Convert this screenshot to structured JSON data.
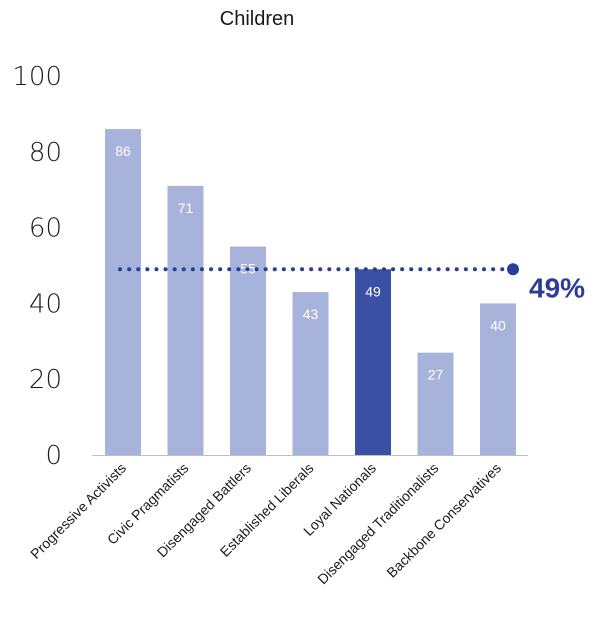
{
  "chart_data": {
    "type": "bar",
    "title": "Children",
    "categories": [
      "Progressive Activists",
      "Civic Pragmatists",
      "Disengaged Battlers",
      "Established Liberals",
      "Loyal Nationals",
      "Disengaged Traditionalists",
      "Backbone Conservatives"
    ],
    "values": [
      86,
      71,
      55,
      43,
      49,
      27,
      40
    ],
    "highlight_category": "Loyal Nationals",
    "reference_line": {
      "value": 49,
      "label": "49%"
    },
    "ylim": [
      0,
      100
    ],
    "yticks": [
      0,
      20,
      40,
      60,
      80,
      100
    ],
    "grid": false,
    "legend": "none",
    "colors": {
      "bar": "#a8b3dc",
      "highlight": "#3a50a5",
      "reference": "#2a3d99",
      "axis": "#bfbfbf"
    }
  }
}
